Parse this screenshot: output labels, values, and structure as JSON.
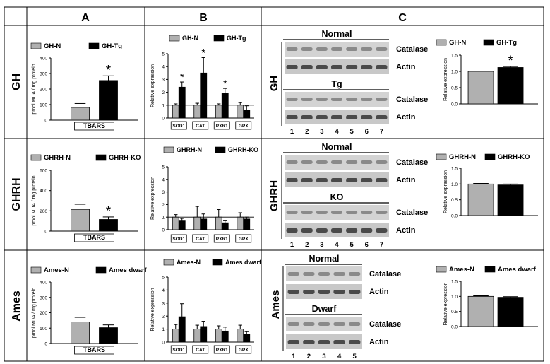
{
  "columns": [
    "A",
    "B",
    "C"
  ],
  "rows": [
    "GH",
    "GHRH",
    "Ames"
  ],
  "blot_labels": {
    "lanes": [
      "1",
      "2",
      "3",
      "4",
      "5",
      "6",
      "7"
    ],
    "protein_top": "Catalase",
    "protein_bottom": "Actin"
  },
  "chart_data": [
    {
      "id": "a-gh",
      "type": "bar",
      "categories": [
        "TBARS"
      ],
      "series": [
        {
          "name": "GH-N",
          "values": [
            82
          ],
          "errors": [
            25
          ]
        },
        {
          "name": "GH-Tg",
          "values": [
            255
          ],
          "errors": [
            30
          ]
        }
      ],
      "ylabel": "pmol MDA / mg protein",
      "ylim": [
        0,
        400
      ],
      "yticks": [
        0,
        100,
        200,
        300,
        400
      ],
      "sig": [
        "GH-Tg"
      ]
    },
    {
      "id": "a-ghrh",
      "type": "bar",
      "categories": [
        "TBARS"
      ],
      "series": [
        {
          "name": "GHRH-N",
          "values": [
            215
          ],
          "errors": [
            50
          ]
        },
        {
          "name": "GHRH-KO",
          "values": [
            115
          ],
          "errors": [
            25
          ]
        }
      ],
      "ylabel": "pmol MDA / mg protein",
      "ylim": [
        0,
        600
      ],
      "yticks": [
        0,
        200,
        400,
        600
      ],
      "sig": [
        "GHRH-KO"
      ]
    },
    {
      "id": "a-ames",
      "type": "bar",
      "categories": [
        "TBARS"
      ],
      "series": [
        {
          "name": "Ames-N",
          "values": [
            140
          ],
          "errors": [
            30
          ]
        },
        {
          "name": "Ames dwarf",
          "values": [
            103
          ],
          "errors": [
            18
          ]
        }
      ],
      "ylabel": "pmol MDA / mg protein",
      "ylim": [
        0,
        400
      ],
      "yticks": [
        0,
        100,
        200,
        300,
        400
      ],
      "sig": []
    },
    {
      "id": "b-gh",
      "type": "bar",
      "categories": [
        "SOD1",
        "CAT",
        "PXR1",
        "GPX"
      ],
      "series": [
        {
          "name": "GH-N",
          "values": [
            1.0,
            1.0,
            1.0,
            1.0
          ],
          "errors": [
            0.1,
            0.15,
            0.1,
            0.2
          ]
        },
        {
          "name": "GH-Tg",
          "values": [
            2.4,
            3.5,
            1.9,
            0.6
          ],
          "errors": [
            0.4,
            1.2,
            0.4,
            0.35
          ]
        }
      ],
      "ylabel": "Relative expression",
      "ylim": [
        0,
        5
      ],
      "yticks": [
        0,
        1,
        2,
        3,
        4,
        5
      ],
      "sig": [
        "SOD1",
        "CAT",
        "PXR1"
      ]
    },
    {
      "id": "b-ghrh",
      "type": "bar",
      "categories": [
        "SOD1",
        "CAT",
        "PXR1",
        "GPX"
      ],
      "series": [
        {
          "name": "GHRH-N",
          "values": [
            1.0,
            1.0,
            1.0,
            1.0
          ],
          "errors": [
            0.2,
            0.85,
            0.6,
            0.35
          ]
        },
        {
          "name": "GHRH-KO",
          "values": [
            0.75,
            0.85,
            0.55,
            0.85
          ],
          "errors": [
            0.15,
            0.4,
            0.2,
            0.15
          ]
        }
      ],
      "ylabel": "Relative expression",
      "ylim": [
        0,
        5
      ],
      "yticks": [
        0,
        1,
        2,
        3,
        4,
        5
      ],
      "sig": []
    },
    {
      "id": "b-ames",
      "type": "bar",
      "categories": [
        "SOD1",
        "CAT",
        "PXR1",
        "GPX"
      ],
      "series": [
        {
          "name": "Ames-N",
          "values": [
            1.0,
            1.0,
            1.0,
            1.0
          ],
          "errors": [
            0.35,
            0.3,
            0.25,
            0.3
          ]
        },
        {
          "name": "Ames dwarf",
          "values": [
            1.95,
            1.2,
            0.85,
            0.6
          ],
          "errors": [
            1.0,
            0.4,
            0.3,
            0.2
          ]
        }
      ],
      "ylabel": "Relative expression",
      "ylim": [
        0,
        5
      ],
      "yticks": [
        0,
        1,
        2,
        3,
        4,
        5
      ],
      "sig": []
    },
    {
      "id": "c-gh",
      "type": "bar",
      "categories": [
        ""
      ],
      "series": [
        {
          "name": "GH-N",
          "values": [
            1.0
          ],
          "errors": [
            0.01
          ]
        },
        {
          "name": "GH-Tg",
          "values": [
            1.12
          ],
          "errors": [
            0.03
          ]
        }
      ],
      "ylabel": "Relative expression",
      "ylim": [
        0,
        1.5
      ],
      "yticks": [
        0.0,
        0.5,
        1.0,
        1.5
      ],
      "sig": [
        "GH-Tg"
      ]
    },
    {
      "id": "c-ghrh",
      "type": "bar",
      "categories": [
        ""
      ],
      "series": [
        {
          "name": "GHRH-N",
          "values": [
            1.0
          ],
          "errors": [
            0.02
          ]
        },
        {
          "name": "GHRH-KO",
          "values": [
            0.97
          ],
          "errors": [
            0.03
          ]
        }
      ],
      "ylabel": "Relative expression",
      "ylim": [
        0,
        1.5
      ],
      "yticks": [
        0.0,
        0.5,
        1.0,
        1.5
      ],
      "sig": []
    },
    {
      "id": "c-ames",
      "type": "bar",
      "categories": [
        ""
      ],
      "series": [
        {
          "name": "Ames-N",
          "values": [
            1.0
          ],
          "errors": [
            0.02
          ]
        },
        {
          "name": "Ames dwarf",
          "values": [
            0.97
          ],
          "errors": [
            0.02
          ]
        }
      ],
      "ylabel": "Relative expression",
      "ylim": [
        0,
        1.5
      ],
      "yticks": [
        0.0,
        0.5,
        1.0,
        1.5
      ],
      "sig": []
    }
  ],
  "blots": [
    {
      "id": "gh-blot",
      "groups": [
        {
          "name": "Normal"
        },
        {
          "name": "Tg"
        }
      ],
      "lanes": 7
    },
    {
      "id": "ghrh-blot",
      "groups": [
        {
          "name": "Normal"
        },
        {
          "name": "KO"
        }
      ],
      "lanes": 7
    },
    {
      "id": "ames-blot",
      "groups": [
        {
          "name": "Normal"
        },
        {
          "name": "Dwarf"
        }
      ],
      "lanes": 5
    }
  ],
  "colors": {
    "control": "#b0b0b0",
    "treated": "#000000"
  }
}
